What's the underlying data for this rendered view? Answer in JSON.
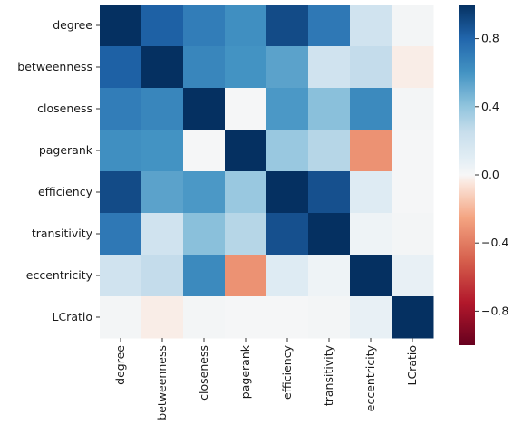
{
  "chart_data": {
    "type": "heatmap",
    "title": "",
    "xlabel": "",
    "ylabel": "",
    "rows": [
      "degree",
      "betweenness",
      "closeness",
      "pagerank",
      "efficiency",
      "transitivity",
      "eccentricity",
      "LCratio"
    ],
    "columns": [
      "degree",
      "betweenness",
      "closeness",
      "pagerank",
      "efficiency",
      "transitivity",
      "eccentricity",
      "LCratio"
    ],
    "values": [
      [
        1.0,
        0.82,
        0.7,
        0.62,
        0.9,
        0.72,
        0.2,
        0.02
      ],
      [
        0.82,
        1.0,
        0.66,
        0.6,
        0.54,
        0.2,
        0.26,
        -0.03
      ],
      [
        0.7,
        0.66,
        1.0,
        0.01,
        0.58,
        0.42,
        0.64,
        0.02
      ],
      [
        0.62,
        0.6,
        0.01,
        1.0,
        0.38,
        0.3,
        -0.32,
        0.01
      ],
      [
        0.9,
        0.54,
        0.58,
        0.38,
        1.0,
        0.88,
        0.12,
        0.01
      ],
      [
        0.72,
        0.2,
        0.42,
        0.3,
        0.88,
        1.0,
        0.04,
        0.02
      ],
      [
        0.2,
        0.26,
        0.64,
        -0.32,
        0.12,
        0.04,
        1.0,
        0.07
      ],
      [
        0.02,
        -0.03,
        0.02,
        0.01,
        0.01,
        0.02,
        0.07,
        1.0
      ]
    ],
    "colorbar": {
      "min": -1.0,
      "max": 1.0,
      "colormap": "RdBu",
      "ticks": [
        "−0.8",
        "−0.4",
        "0.0",
        "0.4",
        "0.8"
      ],
      "tick_values": [
        -0.8,
        -0.4,
        0.0,
        0.4,
        0.8
      ]
    },
    "grid": false
  }
}
